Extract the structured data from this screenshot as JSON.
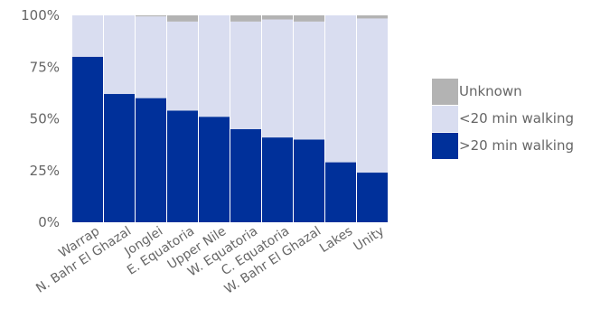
{
  "chart_data": {
    "type": "bar",
    "stacked": true,
    "categories": [
      "Warrap",
      "N. Bahr El Ghazal",
      "Jonglei",
      "E. Equatoria",
      "Upper Nile",
      "W. Equatoria",
      "C. Equatoria",
      "W. Bahr El Ghazal",
      "Lakes",
      "Unity"
    ],
    "series": [
      {
        "name": ">20 min walking",
        "color": "#00309a",
        "values": [
          80,
          62,
          60,
          54,
          51,
          45,
          41,
          40,
          29,
          24
        ]
      },
      {
        "name": "<20 min walking",
        "color": "#d9ddf0",
        "values": [
          20,
          38,
          39.5,
          43,
          49,
          52,
          57,
          57,
          71,
          74.5
        ]
      },
      {
        "name": "Unknown",
        "color": "#b3b3b3",
        "values": [
          0,
          0,
          0.5,
          3,
          0,
          3,
          2,
          3,
          0,
          1.5
        ]
      }
    ],
    "yticks": [
      "0%",
      "25%",
      "50%",
      "75%",
      "100%"
    ],
    "ylim": [
      0,
      100
    ],
    "grid": false,
    "legend_position": "right"
  }
}
